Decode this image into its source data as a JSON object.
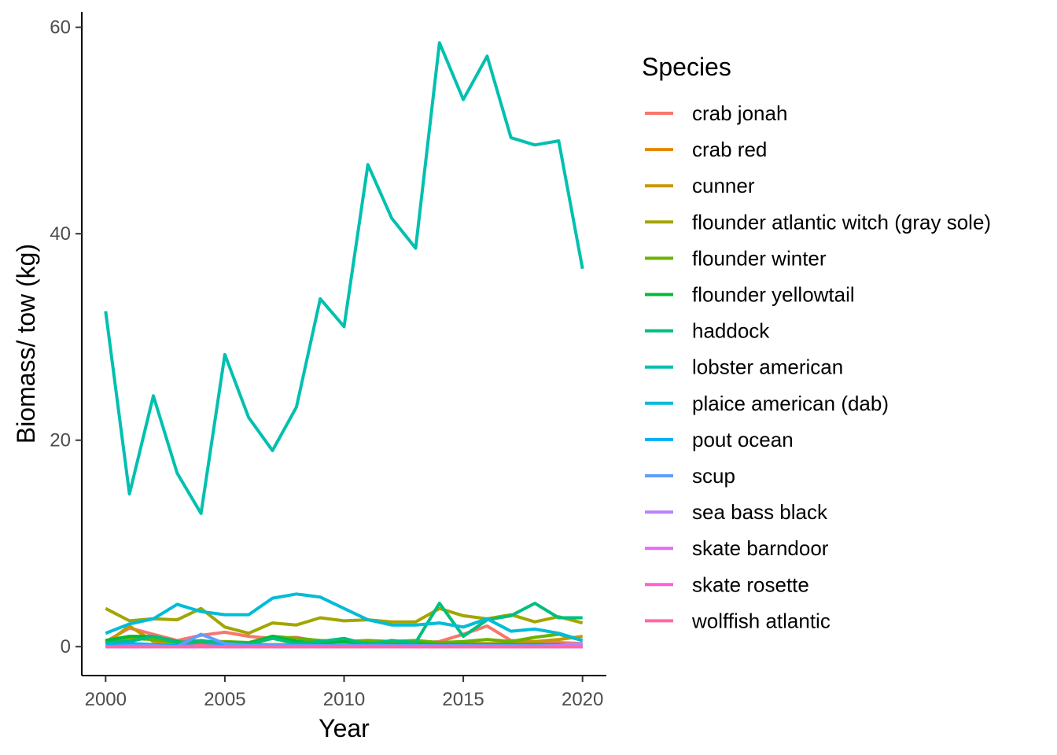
{
  "chart_data": {
    "type": "line",
    "xlabel": "Year",
    "ylabel": "Biomass/ tow (kg)",
    "legend_title": "Species",
    "legend_position": "right",
    "grid": false,
    "xlim": [
      1999,
      2021
    ],
    "ylim": [
      -2.8,
      61.5
    ],
    "x_ticks": [
      2000,
      2005,
      2010,
      2015,
      2020
    ],
    "y_ticks": [
      0,
      20,
      40,
      60
    ],
    "x": [
      2000,
      2001,
      2002,
      2003,
      2004,
      2005,
      2006,
      2007,
      2008,
      2009,
      2010,
      2011,
      2012,
      2013,
      2014,
      2015,
      2016,
      2017,
      2018,
      2019,
      2020
    ],
    "series": [
      {
        "name": "crab jonah",
        "color": "#F8766D",
        "values": [
          0.5,
          1.8,
          1.2,
          0.6,
          1.1,
          1.4,
          1.0,
          0.8,
          0.9,
          0.5,
          0.4,
          0.3,
          0.2,
          0.3,
          0.5,
          1.2,
          2.0,
          0.6,
          0.5,
          0.4,
          0.3
        ]
      },
      {
        "name": "crab red",
        "color": "#E58700",
        "values": [
          0.0,
          0.1,
          0.1,
          0.0,
          0.0,
          0.1,
          0.0,
          0.0,
          0.0,
          0.0,
          0.0,
          0.0,
          0.0,
          0.0,
          0.0,
          0.0,
          0.0,
          0.0,
          0.0,
          0.0,
          0.0
        ]
      },
      {
        "name": "cunner",
        "color": "#C99800",
        "values": [
          0.3,
          2.0,
          0.5,
          0.4,
          0.3,
          0.3,
          0.2,
          0.2,
          0.2,
          0.1,
          0.1,
          0.2,
          0.1,
          0.1,
          0.2,
          0.3,
          0.3,
          0.3,
          0.5,
          0.7,
          1.0
        ]
      },
      {
        "name": "flounder atlantic witch (gray sole)",
        "color": "#A3A500",
        "values": [
          3.7,
          2.5,
          2.7,
          2.6,
          3.7,
          1.9,
          1.3,
          2.3,
          2.1,
          2.8,
          2.5,
          2.6,
          2.4,
          2.4,
          3.7,
          3.0,
          2.7,
          3.1,
          2.4,
          2.9,
          2.3
        ]
      },
      {
        "name": "flounder winter",
        "color": "#6BB100",
        "values": [
          0.6,
          0.8,
          0.7,
          0.4,
          0.5,
          0.5,
          0.4,
          1.0,
          0.8,
          0.6,
          0.5,
          0.6,
          0.5,
          0.6,
          0.4,
          0.5,
          0.7,
          0.5,
          0.9,
          1.2,
          0.6
        ]
      },
      {
        "name": "flounder yellowtail",
        "color": "#00BA38",
        "values": [
          0.6,
          1.0,
          1.0,
          0.5,
          0.2,
          0.4,
          0.3,
          1.0,
          0.5,
          0.3,
          0.5,
          0.3,
          0.2,
          0.3,
          0.2,
          0.2,
          0.2,
          0.2,
          0.2,
          0.2,
          0.1
        ]
      },
      {
        "name": "haddock",
        "color": "#00BF7D",
        "values": [
          0.4,
          0.5,
          1.0,
          0.4,
          0.6,
          0.3,
          0.2,
          0.8,
          0.3,
          0.5,
          0.8,
          0.2,
          0.6,
          0.4,
          4.2,
          1.0,
          2.6,
          3.0,
          4.2,
          2.8,
          2.8
        ]
      },
      {
        "name": "lobster american",
        "color": "#00C0AF",
        "values": [
          32.5,
          14.8,
          24.3,
          16.8,
          12.9,
          28.3,
          22.2,
          19.0,
          23.2,
          33.7,
          31.0,
          46.7,
          41.5,
          38.6,
          58.5,
          53.0,
          57.2,
          49.3,
          48.6,
          49.0,
          36.6
        ]
      },
      {
        "name": "plaice american (dab)",
        "color": "#00BCD8",
        "values": [
          1.3,
          2.2,
          2.7,
          4.1,
          3.4,
          3.1,
          3.1,
          4.7,
          5.1,
          4.8,
          3.7,
          2.6,
          2.1,
          2.1,
          2.3,
          1.9,
          2.7,
          1.5,
          1.7,
          1.3,
          0.6
        ]
      },
      {
        "name": "pout ocean",
        "color": "#00B0F6",
        "values": [
          0.2,
          0.3,
          0.2,
          0.1,
          0.2,
          0.2,
          0.2,
          0.1,
          0.1,
          0.1,
          0.1,
          0.1,
          0.1,
          0.1,
          0.1,
          0.0,
          0.0,
          0.0,
          0.0,
          0.0,
          0.0
        ]
      },
      {
        "name": "scup",
        "color": "#619CFF",
        "values": [
          0.0,
          0.1,
          0.1,
          0.0,
          1.2,
          0.3,
          0.1,
          0.1,
          0.1,
          0.1,
          0.1,
          0.1,
          0.1,
          0.1,
          0.1,
          0.1,
          0.1,
          0.1,
          0.1,
          0.1,
          0.2
        ]
      },
      {
        "name": "sea bass black",
        "color": "#B983FF",
        "values": [
          0.0,
          0.0,
          0.0,
          0.0,
          0.0,
          0.0,
          0.0,
          0.0,
          0.0,
          0.0,
          0.0,
          0.0,
          0.0,
          0.0,
          0.0,
          0.0,
          0.0,
          0.0,
          0.0,
          0.1,
          0.3
        ]
      },
      {
        "name": "skate barndoor",
        "color": "#E76BF3",
        "values": [
          0.0,
          0.0,
          0.0,
          0.0,
          0.0,
          0.0,
          0.0,
          0.0,
          0.0,
          0.0,
          0.0,
          0.0,
          0.0,
          0.0,
          0.0,
          0.0,
          0.0,
          0.0,
          0.0,
          0.0,
          0.0
        ]
      },
      {
        "name": "skate rosette",
        "color": "#FD61D1",
        "values": [
          0.0,
          0.0,
          0.0,
          0.0,
          0.0,
          0.0,
          0.0,
          0.0,
          0.0,
          0.0,
          0.0,
          0.0,
          0.0,
          0.0,
          0.0,
          0.0,
          0.0,
          0.0,
          0.0,
          0.0,
          0.0
        ]
      },
      {
        "name": "wolffish atlantic",
        "color": "#FF67A4",
        "values": [
          0.0,
          0.0,
          0.0,
          0.0,
          0.1,
          0.0,
          0.0,
          0.0,
          0.0,
          0.0,
          0.0,
          0.0,
          0.0,
          0.0,
          0.0,
          0.0,
          0.0,
          0.0,
          0.0,
          0.0,
          0.0
        ]
      }
    ]
  }
}
